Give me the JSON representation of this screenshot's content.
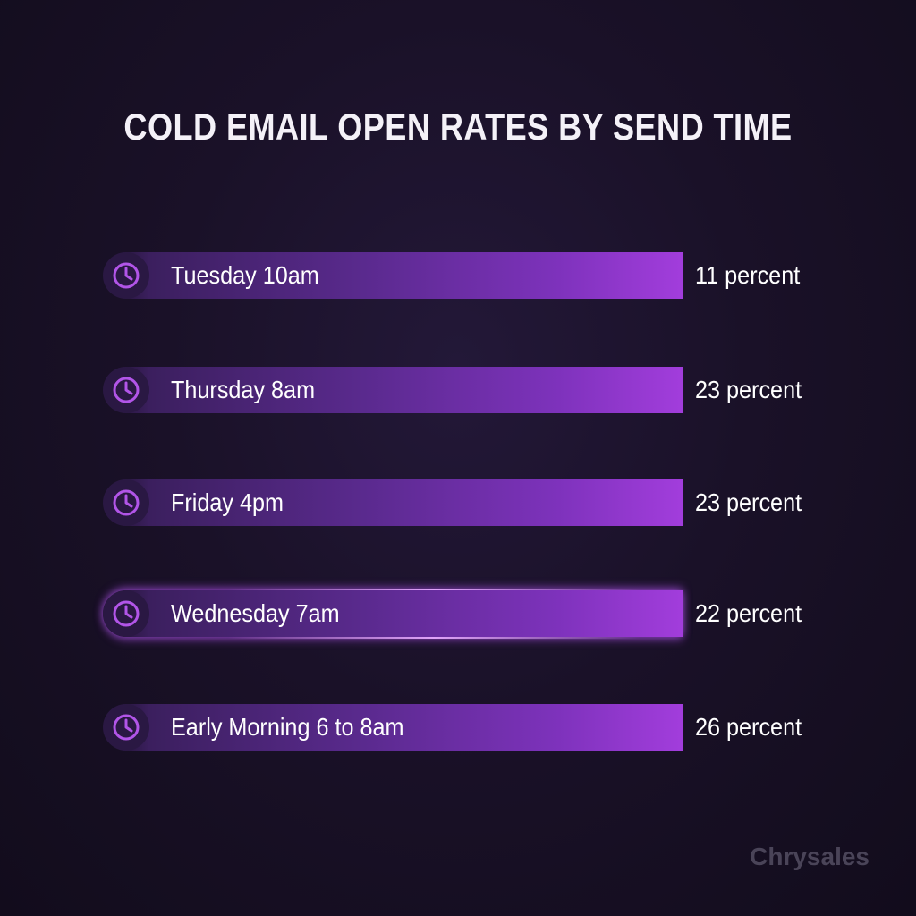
{
  "chart_data": {
    "type": "bar",
    "title": "COLD EMAIL OPEN RATES BY SEND TIME",
    "categories": [
      "Tuesday 10am",
      "Thursday 8am",
      "Friday 4pm",
      "Wednesday 7am",
      "Early Morning 6 to 8am"
    ],
    "values": [
      11,
      23,
      23,
      22,
      26
    ],
    "value_labels": [
      "11 percent",
      "23 percent",
      "23 percent",
      "22 percent",
      "26 percent"
    ],
    "unit": "percent",
    "highlighted_category": "Wednesday 7am",
    "icon": "clock-icon",
    "colors": {
      "bar_start": "#3b1f5e",
      "bar_end": "#a23ddc",
      "icon": "#b255e8",
      "background": "#1a1128"
    },
    "xlabel": "",
    "ylabel": ""
  },
  "watermark": "Chrysales"
}
